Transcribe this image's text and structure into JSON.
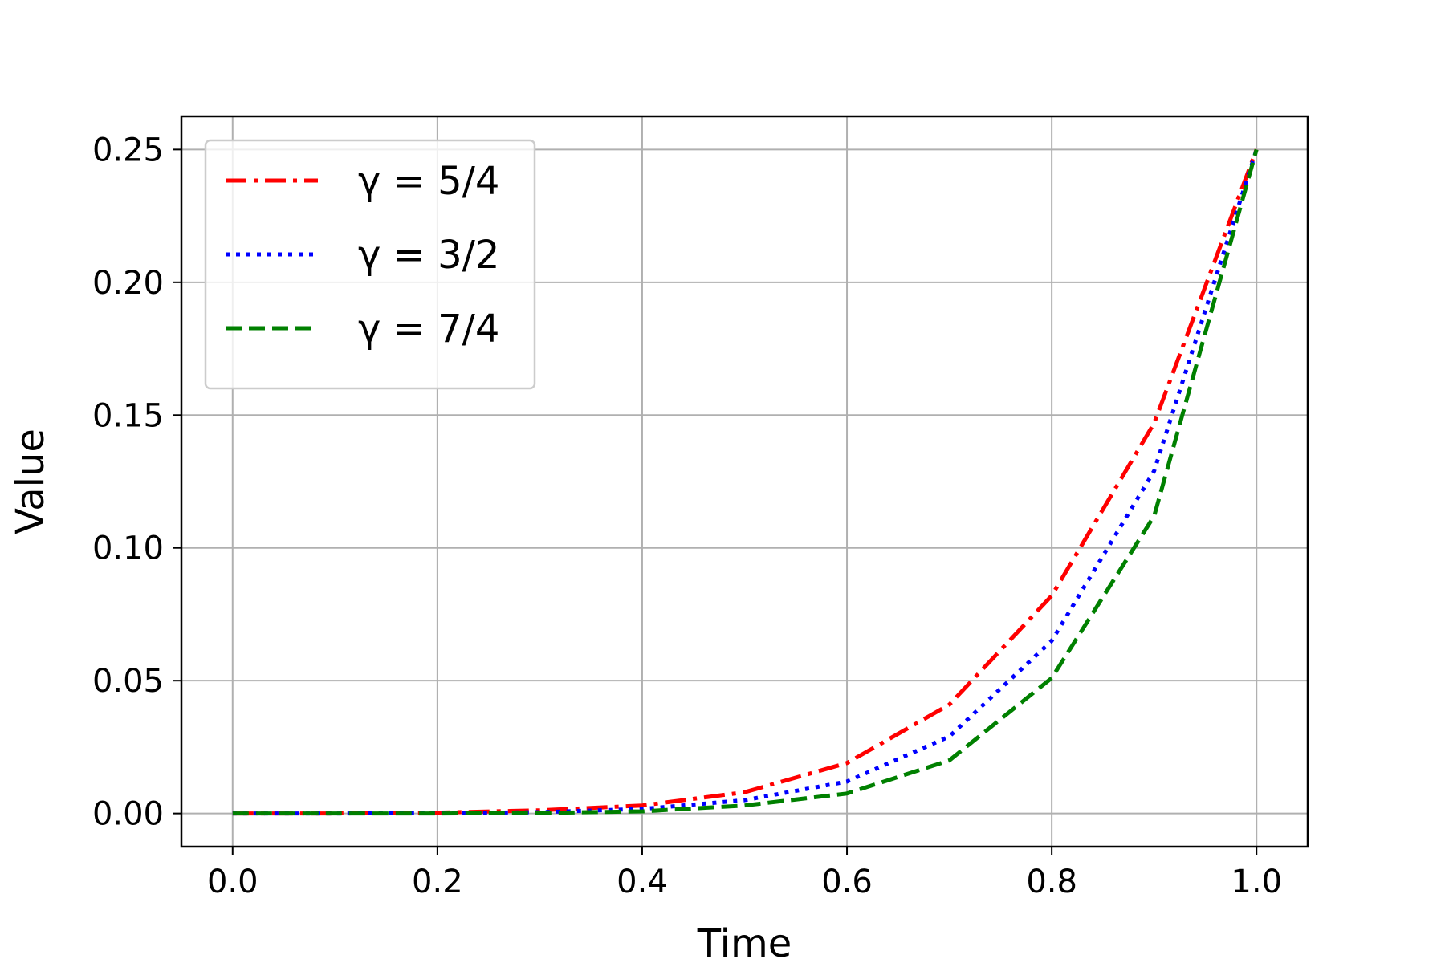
{
  "chart_data": {
    "type": "line",
    "title": "",
    "xlabel": "Time",
    "ylabel": "Value",
    "xlim": [
      -0.05,
      1.05
    ],
    "ylim": [
      -0.0125,
      0.2625
    ],
    "xticks": [
      "0.0",
      "0.2",
      "0.4",
      "0.6",
      "0.8",
      "1.0"
    ],
    "yticks": [
      "0.00",
      "0.05",
      "0.10",
      "0.15",
      "0.20",
      "0.25"
    ],
    "grid": true,
    "legend_position": "upper-left",
    "series": [
      {
        "name": "γ = 5/4",
        "color": "#ff0000",
        "linestyle": "dashdot",
        "x": [
          0.0,
          0.1,
          0.2,
          0.3,
          0.4,
          0.5,
          0.6,
          0.7,
          0.8,
          0.9,
          1.0
        ],
        "y": [
          0.0,
          0.0,
          0.0003,
          0.0012,
          0.003,
          0.008,
          0.019,
          0.041,
          0.082,
          0.147,
          0.25
        ]
      },
      {
        "name": "γ = 3/2",
        "color": "#0000ff",
        "linestyle": "dotted",
        "x": [
          0.0,
          0.1,
          0.2,
          0.3,
          0.4,
          0.5,
          0.6,
          0.7,
          0.8,
          0.9,
          1.0
        ],
        "y": [
          0.0,
          0.0,
          0.0001,
          0.0005,
          0.0017,
          0.005,
          0.012,
          0.029,
          0.065,
          0.129,
          0.25
        ]
      },
      {
        "name": "γ = 7/4",
        "color": "#008000",
        "linestyle": "dashed",
        "x": [
          0.0,
          0.1,
          0.2,
          0.3,
          0.4,
          0.5,
          0.6,
          0.7,
          0.8,
          0.9,
          1.0
        ],
        "y": [
          0.0,
          0.0,
          0.0,
          0.0002,
          0.0008,
          0.003,
          0.0075,
          0.02,
          0.051,
          0.112,
          0.25
        ]
      }
    ]
  }
}
